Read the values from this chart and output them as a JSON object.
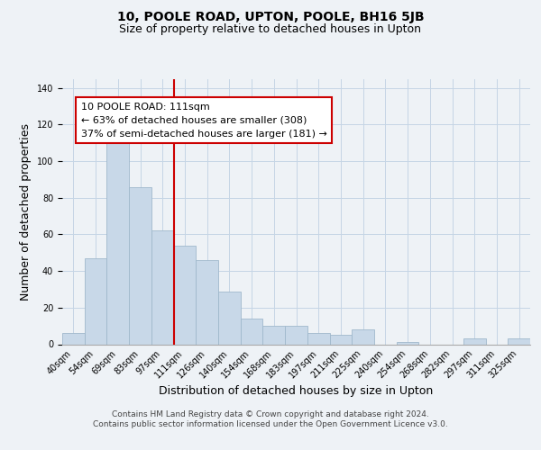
{
  "title": "10, POOLE ROAD, UPTON, POOLE, BH16 5JB",
  "subtitle": "Size of property relative to detached houses in Upton",
  "xlabel": "Distribution of detached houses by size in Upton",
  "ylabel": "Number of detached properties",
  "bar_labels": [
    "40sqm",
    "54sqm",
    "69sqm",
    "83sqm",
    "97sqm",
    "111sqm",
    "126sqm",
    "140sqm",
    "154sqm",
    "168sqm",
    "183sqm",
    "197sqm",
    "211sqm",
    "225sqm",
    "240sqm",
    "254sqm",
    "268sqm",
    "282sqm",
    "297sqm",
    "311sqm",
    "325sqm"
  ],
  "bar_values": [
    6,
    47,
    110,
    86,
    62,
    54,
    46,
    29,
    14,
    10,
    10,
    6,
    5,
    8,
    0,
    1,
    0,
    0,
    3,
    0,
    3
  ],
  "bar_color": "#c8d8e8",
  "bar_edge_color": "#a0b8cc",
  "vline_color": "#cc0000",
  "annotation_text": "10 POOLE ROAD: 111sqm\n← 63% of detached houses are smaller (308)\n37% of semi-detached houses are larger (181) →",
  "annotation_box_edgecolor": "#cc0000",
  "annotation_box_facecolor": "#ffffff",
  "ylim": [
    0,
    145
  ],
  "footer1": "Contains HM Land Registry data © Crown copyright and database right 2024.",
  "footer2": "Contains public sector information licensed under the Open Government Licence v3.0.",
  "bg_color": "#eef2f6",
  "plot_bg_color": "#eef2f6",
  "grid_color": "#c5d5e5",
  "title_fontsize": 10,
  "subtitle_fontsize": 9,
  "axis_label_fontsize": 9,
  "tick_fontsize": 7,
  "footer_fontsize": 6.5,
  "annotation_fontsize": 8
}
